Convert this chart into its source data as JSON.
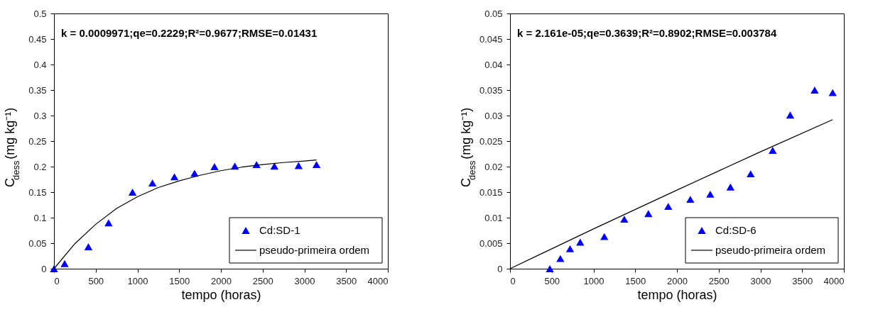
{
  "chart_data": [
    {
      "type": "scatter",
      "xlabel": "tempo (horas)",
      "ylabel": "C$_{dess}$(mg kg⁻¹)",
      "xlim": [
        0,
        4000
      ],
      "ylim": [
        0,
        0.5
      ],
      "xticks": [
        0,
        500,
        1000,
        1500,
        2000,
        2500,
        3000,
        3500,
        4000
      ],
      "yticks": [
        0,
        0.05,
        0.1,
        0.15,
        0.2,
        0.25,
        0.3,
        0.35,
        0.4,
        0.45,
        0.5
      ],
      "grid": false,
      "legend": "bottom right",
      "annotations": [
        "k = 0.0009971;qe=0.2229;R²=0.9677;RMSE=0.01431"
      ],
      "series": [
        {
          "name": "Cd:SD-1",
          "marker": "triangle",
          "color": "#0000ff",
          "x": [
            0,
            128,
            412,
            654,
            941,
            1180,
            1443,
            1684,
            1923,
            2167,
            2427,
            2641,
            2931,
            3145
          ],
          "values": [
            0,
            0.01,
            0.043,
            0.09,
            0.15,
            0.168,
            0.18,
            0.187,
            0.2,
            0.201,
            0.204,
            0.201,
            0.202,
            0.204
          ]
        },
        {
          "name": "pseudo-primeira ordem",
          "type": "line",
          "line_style": "solid",
          "color": "#000000",
          "x": [
            0,
            250,
            500,
            750,
            1000,
            1250,
            1500,
            1750,
            2000,
            2250,
            2500,
            2750,
            3000,
            3145
          ],
          "values": [
            0,
            0.049,
            0.087,
            0.118,
            0.141,
            0.159,
            0.172,
            0.183,
            0.192,
            0.199,
            0.204,
            0.208,
            0.211,
            0.213
          ]
        }
      ]
    },
    {
      "type": "scatter",
      "xlabel": "tempo (horas)",
      "ylabel": "C$_{dess}$(mg kg⁻¹)",
      "xlim": [
        0,
        4000
      ],
      "ylim": [
        0,
        0.05
      ],
      "xticks": [
        0,
        500,
        1000,
        1500,
        2000,
        2500,
        3000,
        3500,
        4000
      ],
      "yticks": [
        0,
        0.005,
        0.01,
        0.015,
        0.02,
        0.025,
        0.03,
        0.035,
        0.04,
        0.045,
        0.05
      ],
      "grid": false,
      "legend": "bottom right",
      "annotations": [
        "k = 2.161e-05;qe=0.3639;R²=0.8902;RMSE=0.003784"
      ],
      "series": [
        {
          "name": "Cd:SD-6",
          "marker": "triangle",
          "color": "#0000ff",
          "x": [
            477,
            603,
            719,
            841,
            1130,
            1369,
            1658,
            1896,
            2160,
            2399,
            2641,
            2883,
            3147,
            3357,
            3650,
            3866
          ],
          "values": [
            0,
            0.002,
            0.0039,
            0.0052,
            0.0063,
            0.0097,
            0.0108,
            0.0122,
            0.0136,
            0.0146,
            0.016,
            0.0186,
            0.0232,
            0.0301,
            0.035,
            0.0345
          ]
        },
        {
          "name": "pseudo-primeira ordem",
          "type": "line",
          "line_style": "solid",
          "color": "#000000",
          "x": [
            0,
            1000,
            2000,
            3000,
            3866
          ],
          "values": [
            0,
            0.0078,
            0.0154,
            0.0229,
            0.0292
          ]
        }
      ]
    }
  ]
}
